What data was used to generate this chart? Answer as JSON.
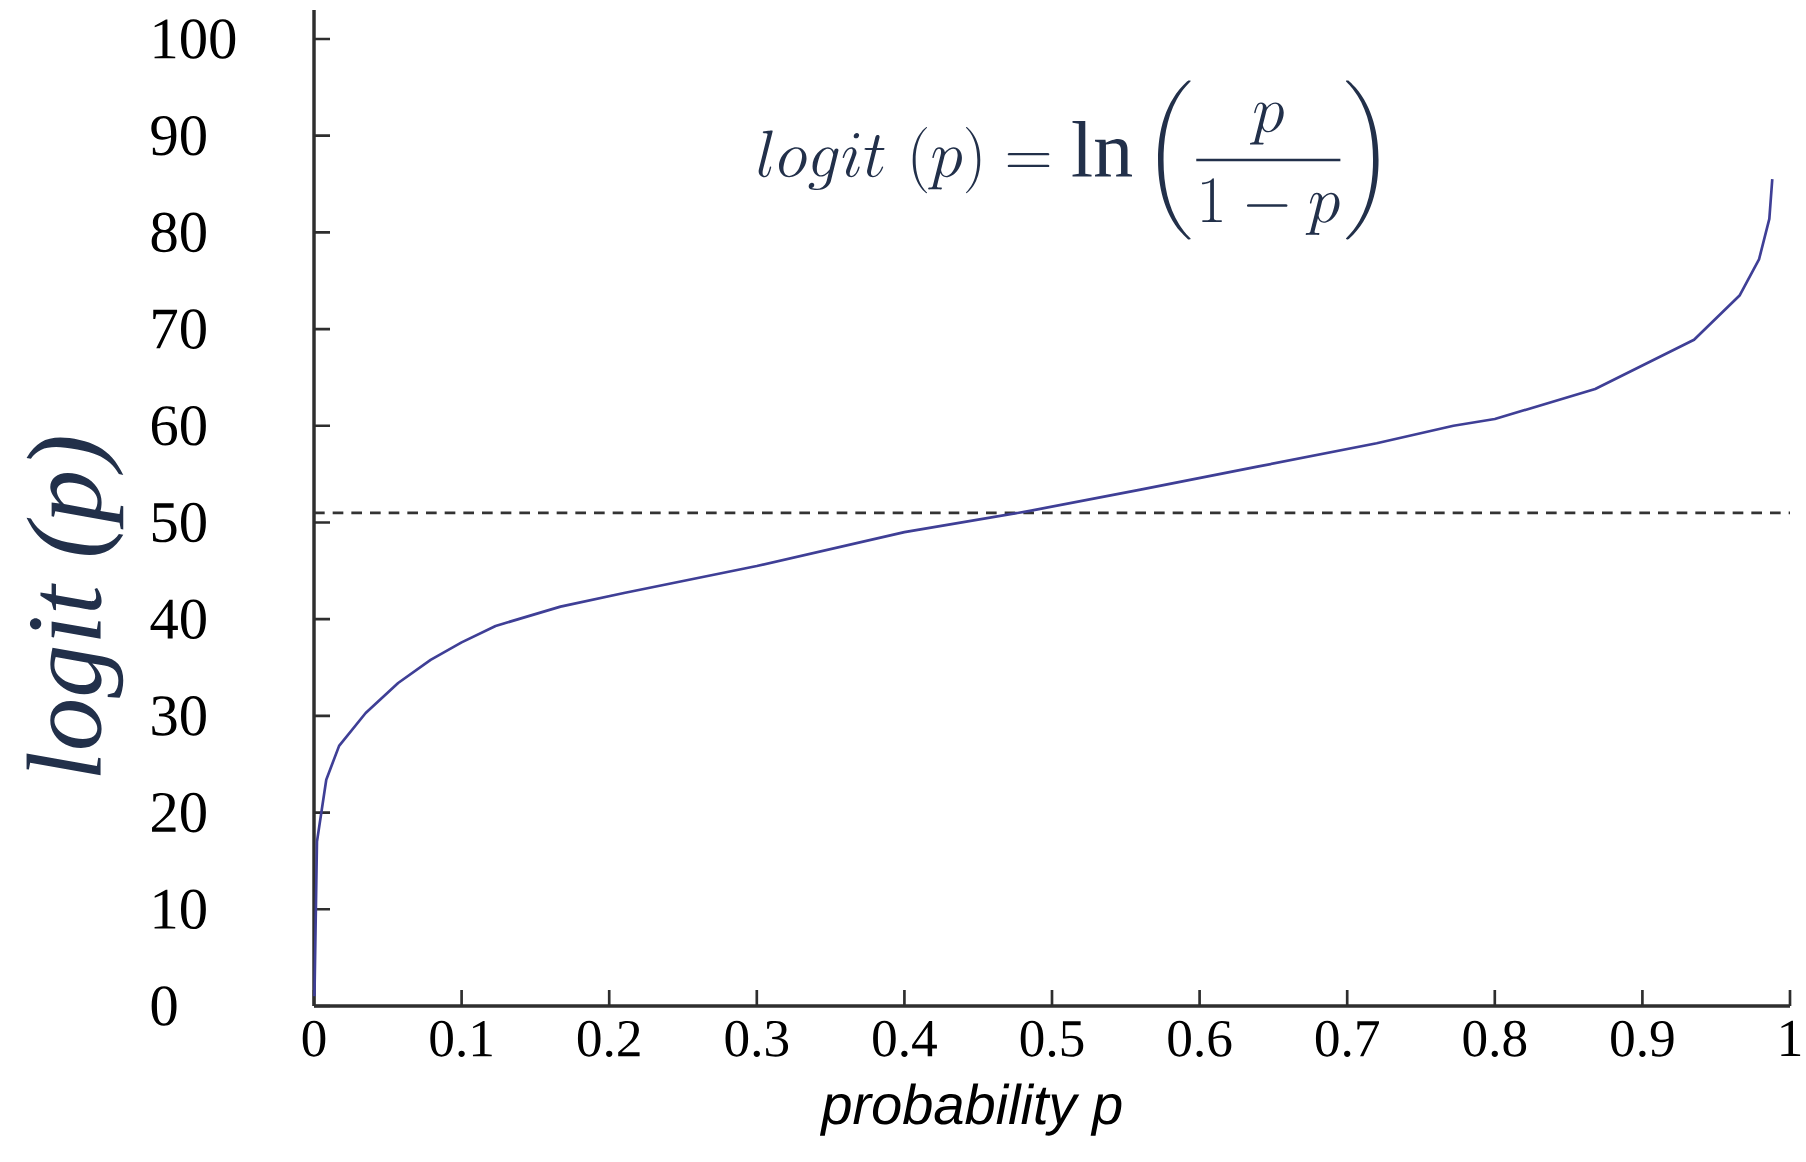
{
  "chart_data": {
    "type": "line",
    "xlabel": "probability p",
    "ylabel": "logit (p)",
    "annotations": [
      "logit\\ (p) = \\ln\\left(\\frac{p}{1-p}\\right)"
    ],
    "x": [
      0.0003,
      0.002,
      0.0083,
      0.017,
      0.035,
      0.057,
      0.079,
      0.1,
      0.123,
      0.167,
      0.21,
      0.3,
      0.4,
      0.485,
      0.56,
      0.64,
      0.72,
      0.772,
      0.8,
      0.868,
      0.935,
      0.966,
      0.979,
      0.986,
      0.988
    ],
    "series": [
      {
        "color": "#3f3f96",
        "values": [
          1,
          17,
          23.4,
          26.9,
          30.3,
          33.4,
          35.8,
          37.6,
          39.3,
          41.3,
          42.7,
          45.5,
          49,
          51.2,
          53.4,
          55.8,
          58.2,
          60,
          60.7,
          63.8,
          68.9,
          73.5,
          77.2,
          81.4,
          85.5
        ]
      }
    ],
    "line_style": "solid",
    "xlim": [
      0,
      1
    ],
    "ylim": [
      0,
      103
    ],
    "xticks": [
      0,
      0.1,
      0.2,
      0.3,
      0.4,
      0.5,
      0.6,
      0.7,
      0.8,
      0.9,
      1
    ],
    "yticks": [
      0,
      10,
      20,
      30,
      40,
      50,
      60,
      70,
      80,
      90,
      100
    ],
    "ref_lines": [
      {
        "axis": "y",
        "value": 51,
        "color": "#333333",
        "line_style": "dashed"
      }
    ]
  }
}
